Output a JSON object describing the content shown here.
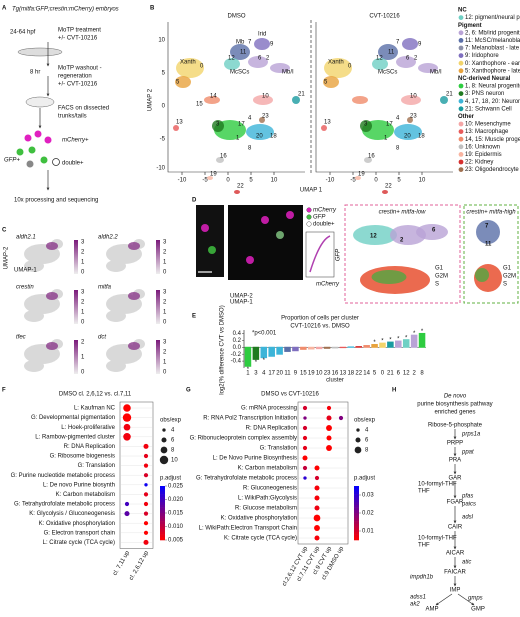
{
  "panel_labels": [
    "A",
    "B",
    "C",
    "D",
    "E",
    "F",
    "G",
    "H"
  ],
  "panel_a": {
    "title": "Tg(mitfa:GFP;crestin:mCherry) embryos",
    "age": "24-64 hpf",
    "treatment": [
      "MoTP treatment",
      "+/- CVT-10216"
    ],
    "duration": "8 hr",
    "washout": [
      "MoTP washout -",
      "regeneration",
      "+/- CVT-10216"
    ],
    "facs": [
      "FACS on dissected",
      "trunks/tails"
    ],
    "populations": [
      "mCherry+",
      "GFP+",
      "double+"
    ],
    "sequencing": "10x processing and sequencing"
  },
  "panel_b": {
    "conditions": [
      "DMSO",
      "CVT-10216"
    ],
    "x_label": "UMAP 1",
    "y_label": "UMAP 2",
    "xticks": [
      "-10",
      "-5",
      "0",
      "5",
      "10"
    ],
    "yticks": [
      "10",
      "5",
      "0",
      "-5",
      "-10"
    ],
    "dmso_labels": [
      "Xanth",
      "Irid",
      "Mb",
      "12",
      "7",
      "6",
      "McSCs",
      "11",
      "2",
      "9",
      "Mb/I",
      "0",
      "5",
      "14",
      "15",
      "13",
      "10",
      "3",
      "17",
      "4",
      "1",
      "20",
      "18",
      "8",
      "16",
      "19",
      "22",
      "21",
      "23"
    ],
    "cvt_labels": [
      "Xanth",
      "McSCs",
      "Mb/I",
      "12",
      "11",
      "6",
      "2",
      "7",
      "9",
      "0",
      "5",
      "13",
      "10",
      "3",
      "4",
      "1",
      "17",
      "18",
      "20",
      "8",
      "16",
      "19",
      "22",
      "21",
      "23"
    ],
    "legend": [
      {
        "header": "NC",
        "entries": [
          {
            "label": "12: pigment/neural progenitor",
            "color": "#6fd0c4"
          }
        ]
      },
      {
        "header": "Pigment",
        "entries": [
          {
            "label": "2, 6: Mb/irid progenitor",
            "color": "#b9a3d6"
          },
          {
            "label": "11: McSC/melanoblast",
            "color": "#5a6fa8"
          },
          {
            "label": "7: Melanoblast - late",
            "color": "#8b8fa8"
          },
          {
            "label": "9: Iridophore",
            "color": "#7f6fbf"
          },
          {
            "label": "0: Xanthophore - early",
            "color": "#f2d46b"
          },
          {
            "label": "5: Xanthophore - late",
            "color": "#e8a33d"
          }
        ]
      },
      {
        "header": "NC-derived Neural",
        "entries": [
          {
            "label": "1, 8: Neural progenitor",
            "color": "#2ecc40"
          },
          {
            "label": "3: PNS neuron",
            "color": "#1f7a1f"
          },
          {
            "label": "4, 17, 18, 20: Neuron/glia",
            "color": "#3cb4d8"
          },
          {
            "label": "21: Schwann Cell",
            "color": "#1a9ba0"
          }
        ]
      },
      {
        "header": "Other",
        "entries": [
          {
            "label": "10: Mesenchyme",
            "color": "#f4a6a6"
          },
          {
            "label": "13: Macrophage",
            "color": "#e85a5a"
          },
          {
            "label": "14, 15: Muscle progenitor",
            "color": "#f08c6c"
          },
          {
            "label": "16: Unknown",
            "color": "#c0c0c0"
          },
          {
            "label": "19: Epidermis",
            "color": "#f9b4a0"
          },
          {
            "label": "22: Kidney",
            "color": "#d63030"
          },
          {
            "label": "23: Oligodendrocyte",
            "color": "#a07050"
          }
        ]
      }
    ]
  },
  "panel_c": {
    "genes": [
      "aldh2.1",
      "aldh2.2",
      "crestin",
      "mitfa",
      "tfec",
      "dct"
    ],
    "colorbar_ticks": [
      [
        "3",
        "2",
        "1",
        "0"
      ],
      [
        "3",
        "2",
        "1",
        "0"
      ],
      [
        "3",
        "2",
        "1",
        "0"
      ],
      [
        "3",
        "2",
        "1",
        "0"
      ],
      [
        "2",
        "1",
        "0"
      ],
      [
        "3",
        "2",
        "1",
        "0"
      ]
    ],
    "axis_labels": [
      "UMAP-2",
      "UMAP-1"
    ]
  },
  "panel_d": {
    "legend": [
      "mCherry",
      "GFP",
      "double+"
    ],
    "facs_axes": [
      "GFP",
      "mCherry"
    ],
    "umap_axes": [
      "UMAP-2",
      "UMAP-1"
    ],
    "low": {
      "title": "crestin+ mitfa-low",
      "clusters": [
        "12",
        "2",
        "6"
      ],
      "phases": [
        "G1",
        "G2M",
        "S"
      ]
    },
    "high": {
      "title": "crestin+ mitfa-high",
      "clusters": [
        "7",
        "11"
      ],
      "phases": [
        "G1",
        "G2M",
        "S"
      ]
    }
  },
  "panel_e": {
    "type": "bar",
    "title": "Proportion of cells per cluster",
    "subtitle": "CVT-10216 vs. DMSO",
    "y_label": "log2(% difference CVT vs DMSO)",
    "x_label": "cluster",
    "annotation": "*p<0.001",
    "significant_marker": "*",
    "categories": [
      "1",
      "3",
      "4",
      "17",
      "20",
      "11",
      "9",
      "15",
      "19",
      "10",
      "23",
      "16",
      "13",
      "18",
      "22",
      "14",
      "5",
      "0",
      "21",
      "6",
      "12",
      "2",
      "8"
    ],
    "values": [
      -0.55,
      -0.35,
      -0.3,
      -0.26,
      -0.2,
      -0.12,
      -0.1,
      -0.06,
      -0.05,
      -0.04,
      -0.03,
      -0.02,
      -0.01,
      0.01,
      0.02,
      0.05,
      0.08,
      0.12,
      0.15,
      0.18,
      0.22,
      0.35,
      0.4
    ],
    "colors": [
      "#2ecc40",
      "#1f7a1f",
      "#3cb4d8",
      "#3cb4d8",
      "#3cb4d8",
      "#5a6fa8",
      "#7f6fbf",
      "#f08c6c",
      "#f9b4a0",
      "#f4a6a6",
      "#a07050",
      "#c0c0c0",
      "#e85a5a",
      "#3cb4d8",
      "#d63030",
      "#f08c6c",
      "#e8a33d",
      "#f2d46b",
      "#1a9ba0",
      "#b9a3d6",
      "#6fd0c4",
      "#b9a3d6",
      "#2ecc40"
    ],
    "significant": [
      true,
      true,
      true,
      false,
      false,
      false,
      false,
      false,
      false,
      false,
      false,
      false,
      false,
      false,
      false,
      false,
      true,
      true,
      true,
      true,
      true,
      true,
      true
    ],
    "ylim": [
      -0.6,
      0.5
    ],
    "yticks": [
      -0.4,
      -0.2,
      {
        "value": 0,
        "label": "0.0"
      },
      0.2,
      0.4
    ]
  },
  "panel_f": {
    "title": "DMSO cl. 2,6,12 vs. cl.7,11",
    "rows": [
      "L: Kaufman NC",
      "G: Developmental pigmentation",
      "L: Hoek-proliferative",
      "L: Rambow-pigmented cluster",
      "R: DNA Replication",
      "G: Ribosome biogenesis",
      "G: Translation",
      "G: Purine nucleotide metabolic process",
      "L: De novo Purine biosynth",
      "K: Carbon metabolism",
      "G: Tetrahydrofolate metabolic process",
      "K: Glycolysis / Gluconeogenesis",
      "K: Oxidative phosphorylation",
      "G: Electron transport chain",
      "L: Citrate cycle (TCA cycle)"
    ],
    "series": [
      {
        "name": "cl. 7,11 up",
        "obs_exp": [
          9,
          10,
          8,
          9,
          null,
          null,
          null,
          null,
          null,
          null,
          5,
          6,
          null,
          null,
          null
        ],
        "p_adjust": [
          0.005,
          0.005,
          0.006,
          0.006,
          null,
          null,
          null,
          null,
          null,
          null,
          0.02,
          0.018,
          null,
          null,
          null
        ]
      },
      {
        "name": "cl. 2,6,12 up",
        "obs_exp": [
          null,
          null,
          null,
          null,
          6,
          5,
          5,
          5,
          4,
          5,
          5,
          5,
          5,
          5,
          6
        ],
        "p_adjust": [
          null,
          null,
          null,
          null,
          0.006,
          0.007,
          0.006,
          0.008,
          0.024,
          0.007,
          0.006,
          0.008,
          0.005,
          0.005,
          0.006
        ]
      }
    ],
    "size_legend": {
      "title": "obs/exp",
      "values": [
        4,
        6,
        8,
        10
      ]
    },
    "color_legend": {
      "title": "p.adjust",
      "range": [
        0.005,
        0.025
      ],
      "ticks": [
        0.025,
        {
          "value": 0.02,
          "label": "0.020"
        },
        0.015,
        {
          "value": 0.01,
          "label": "0.010"
        },
        0.005
      ]
    }
  },
  "panel_g": {
    "title": "DMSO vs CVT-10216",
    "rows": [
      "G: mRNA processing",
      "R: RNA Pol2 Transcription Initiation",
      "R: DNA Replication",
      "G: Ribonucleoprotein complex assembly",
      "G: Translation",
      "L: De Novo Purine Biosynthesis",
      "K: Carbon metabolism",
      "G: Tetrahydrofolate metabolic process",
      "R: Gluconeogenesis",
      "L: WikiPath:Glycolysis",
      "R: Glucose metabolism",
      "K: Oxidative phosphorylation",
      "L: WikiPath:Electron Transport Chain",
      "K: Citrate cycle (TCA cycle)"
    ],
    "series": [
      {
        "name": "cl.2,6,12 CVT up",
        "obs_exp": [
          5,
          4,
          5,
          5,
          5,
          6,
          5,
          4,
          null,
          null,
          null,
          null,
          null,
          null
        ],
        "p_adjust": [
          0.01,
          0.02,
          0.01,
          0.008,
          0.008,
          0.005,
          0.012,
          0.03,
          null,
          null,
          null,
          null,
          null,
          null
        ]
      },
      {
        "name": "cl.7,11 CVT up",
        "obs_exp": [
          null,
          null,
          null,
          null,
          null,
          null,
          6,
          5,
          6,
          6,
          6,
          8,
          7,
          6
        ],
        "p_adjust": [
          null,
          null,
          null,
          null,
          null,
          null,
          0.005,
          0.01,
          0.006,
          0.006,
          0.007,
          0.005,
          0.005,
          0.006
        ]
      },
      {
        "name": "cl.9 CVT up",
        "obs_exp": [
          5,
          6,
          7,
          6,
          7,
          null,
          null,
          null,
          null,
          null,
          null,
          null,
          null,
          null
        ],
        "p_adjust": [
          0.006,
          0.008,
          0.005,
          0.005,
          0.005,
          null,
          null,
          null,
          null,
          null,
          null,
          null,
          null,
          null
        ]
      },
      {
        "name": "cl.9 DMSO up",
        "obs_exp": [
          null,
          5,
          null,
          null,
          null,
          null,
          null,
          null,
          null,
          null,
          null,
          null,
          null,
          null
        ],
        "p_adjust": [
          null,
          0.02,
          null,
          null,
          null,
          null,
          null,
          null,
          null,
          null,
          null,
          null,
          null,
          null
        ]
      }
    ],
    "size_legend": {
      "title": "obs/exp",
      "values": [
        4,
        6,
        8
      ]
    },
    "color_legend": {
      "title": "p.adjust",
      "range": [
        0.005,
        0.035
      ],
      "ticks": [
        0.03,
        0.02,
        0.01
      ]
    }
  },
  "panel_h": {
    "title": [
      "De novo",
      "purine biosynthesis pathway"
    ],
    "subtitle": "enriched genes",
    "metabolites": [
      "Ribose-5-phosphate",
      "PRPP",
      "PRA",
      "GAR",
      "FGAR",
      "CAIR",
      "AICAR",
      "FAICAR",
      "IMP",
      "AMP",
      "GMP"
    ],
    "cofactors": [
      "10-formyl-THF",
      "THF",
      "10-formyl-THF",
      "THF"
    ],
    "genes": [
      "prps1a",
      "ppat",
      "pfas",
      "paics",
      "adsl",
      "atic",
      "impdh1b",
      "adss1",
      "ak2",
      "gmps"
    ]
  }
}
